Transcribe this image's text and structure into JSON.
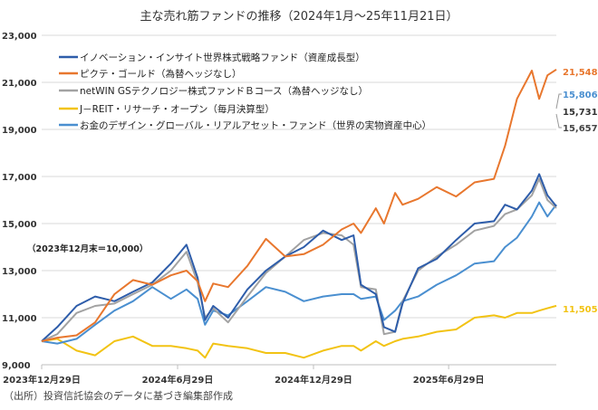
{
  "chart_data": {
    "type": "line",
    "title": "主な売れ筋ファンドの推移（2024年1月～25年11月21日）",
    "annotation": "（2023年12月末＝10,000）",
    "source": "（出所）投資信託協会のデータに基づき編集部作成",
    "xlabel": "",
    "ylabel": "",
    "ylim": [
      9000,
      23000
    ],
    "y_ticks": [
      "9,000",
      "11,000",
      "13,000",
      "15,000",
      "17,000",
      "19,000",
      "21,000",
      "23,000"
    ],
    "y_tick_values": [
      9000,
      11000,
      13000,
      15000,
      17000,
      19000,
      21000,
      23000
    ],
    "x_range": [
      "2023-12-29",
      "2025-11-21"
    ],
    "x_ticks": [
      {
        "date": "2023-12-29",
        "label": "2023年12月29日"
      },
      {
        "date": "2024-06-29",
        "label": "2024年6月29日"
      },
      {
        "date": "2024-12-29",
        "label": "2024年12月29日"
      },
      {
        "date": "2025-06-29",
        "label": "2025年6月29日"
      }
    ],
    "grid": "horizontal",
    "legend_position": "top-left",
    "x": [
      "2023-12-29",
      "2024-01-19",
      "2024-02-14",
      "2024-03-10",
      "2024-04-05",
      "2024-04-30",
      "2024-05-26",
      "2024-06-20",
      "2024-07-11",
      "2024-07-26",
      "2024-08-05",
      "2024-08-16",
      "2024-09-05",
      "2024-10-01",
      "2024-10-26",
      "2024-11-21",
      "2024-12-16",
      "2025-01-11",
      "2025-02-05",
      "2025-02-21",
      "2025-03-03",
      "2025-03-23",
      "2025-04-03",
      "2025-04-18",
      "2025-04-28",
      "2025-05-19",
      "2025-06-13",
      "2025-07-09",
      "2025-08-03",
      "2025-08-29",
      "2025-09-13",
      "2025-09-29",
      "2025-10-19",
      "2025-10-29",
      "2025-11-09",
      "2025-11-21"
    ],
    "series": [
      {
        "name": "イノベーション・インサイト世界株式戦略ファンド（資産成長型）",
        "color": "#2e5daa",
        "end_label": "15,731",
        "end_label_color": "#333333",
        "values": [
          10000,
          10600,
          11500,
          11900,
          11700,
          12100,
          12500,
          13300,
          14100,
          12700,
          10900,
          11500,
          11000,
          12200,
          13000,
          13600,
          14000,
          14700,
          14300,
          14500,
          12400,
          12000,
          10600,
          10400,
          11600,
          13100,
          13500,
          14300,
          15000,
          15100,
          15800,
          15600,
          16400,
          17100,
          16200,
          15731
        ]
      },
      {
        "name": "ピクテ・ゴールド（為替ヘッジなし）",
        "color": "#e8772e",
        "end_label": "21,548",
        "end_label_color": "#e8772e",
        "values": [
          10000,
          10150,
          10250,
          10800,
          12000,
          12600,
          12400,
          12800,
          13000,
          12550,
          11700,
          12450,
          12300,
          13200,
          14350,
          13600,
          13700,
          14100,
          14750,
          15000,
          14600,
          15650,
          15000,
          16300,
          15800,
          16050,
          16550,
          16150,
          16750,
          16900,
          18300,
          20300,
          21500,
          20300,
          21300,
          21548
        ]
      },
      {
        "name": "netWIN GSテクノロジー株式ファンドＢコース（為替ヘッジなし）",
        "color": "#a2a2a2",
        "end_label": "15,657",
        "end_label_color": "#444444",
        "values": [
          10000,
          10300,
          11200,
          11500,
          11600,
          12000,
          12400,
          13000,
          13800,
          12500,
          11000,
          11400,
          10800,
          11900,
          12900,
          13600,
          14300,
          14600,
          14500,
          14100,
          12300,
          12200,
          10300,
          10400,
          11700,
          13000,
          13600,
          14100,
          14700,
          14900,
          15400,
          15600,
          16200,
          16900,
          16000,
          15657
        ]
      },
      {
        "name": "J－REIT・リサーチ・オープン（毎月決算型）",
        "color": "#f2c314",
        "end_label": "11,505",
        "end_label_color": "#f2c314",
        "values": [
          10000,
          10100,
          9600,
          9400,
          10000,
          10200,
          9800,
          9800,
          9700,
          9600,
          9300,
          9900,
          9800,
          9700,
          9500,
          9500,
          9300,
          9600,
          9800,
          9800,
          9600,
          10000,
          9800,
          10000,
          10100,
          10200,
          10400,
          10500,
          11000,
          11100,
          11000,
          11200,
          11200,
          11300,
          11400,
          11505
        ]
      },
      {
        "name": "お金のデザイン・グローバル・リアルアセット・ファンド（世界の実物資産中心）",
        "color": "#4a8fd0",
        "end_label": "15,806",
        "end_label_color": "#4a8fd0",
        "values": [
          10000,
          9900,
          10100,
          10700,
          11300,
          11700,
          12300,
          11800,
          12200,
          11800,
          10700,
          11300,
          11100,
          11700,
          12300,
          12100,
          11700,
          11900,
          12000,
          12000,
          11800,
          11900,
          10900,
          11300,
          11700,
          11900,
          12400,
          12800,
          13300,
          13400,
          14000,
          14400,
          15300,
          15900,
          15300,
          15806
        ]
      }
    ]
  }
}
